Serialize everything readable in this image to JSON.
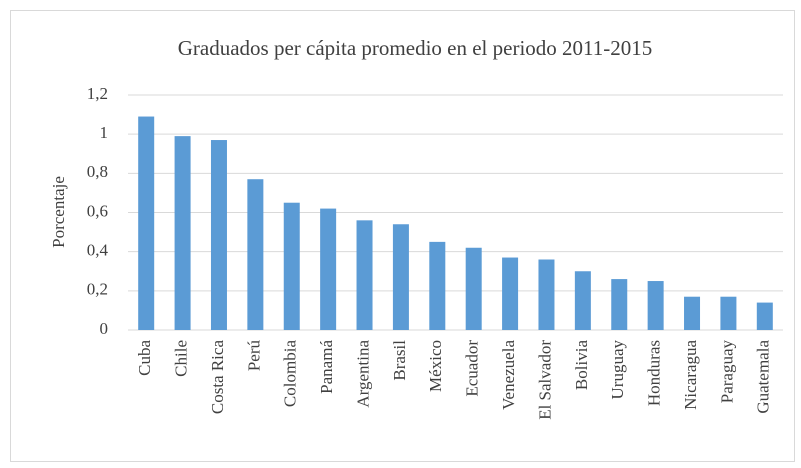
{
  "chart_data": {
    "type": "bar",
    "title": "Graduados per cápita promedio en el periodo 2011-2015",
    "y_label": "Porcentaje",
    "categories": [
      "Cuba",
      "Chile",
      "Costa Rica",
      "Perú",
      "Colombia",
      "Panamá",
      "Argentina",
      "Brasil",
      "México",
      "Ecuador",
      "Venezuela",
      "El Salvador",
      "Bolivia",
      "Uruguay",
      "Honduras",
      "Nicaragua",
      "Paraguay",
      "Guatemala"
    ],
    "values": [
      1.09,
      0.99,
      0.97,
      0.77,
      0.65,
      0.62,
      0.56,
      0.54,
      0.45,
      0.42,
      0.37,
      0.36,
      0.3,
      0.26,
      0.25,
      0.17,
      0.17,
      0.14
    ],
    "color": "#5b9bd5",
    "ylim": [
      0,
      1.2
    ],
    "yticks": [
      0,
      {
        "value": 0.2,
        "label": "0,2"
      },
      {
        "value": 0.4,
        "label": "0,4"
      },
      {
        "value": 0.6,
        "label": "0,6"
      },
      {
        "value": 0.8,
        "label": "0,8"
      },
      1,
      {
        "value": 1.2,
        "label": "1,2"
      }
    ],
    "grid": true
  }
}
